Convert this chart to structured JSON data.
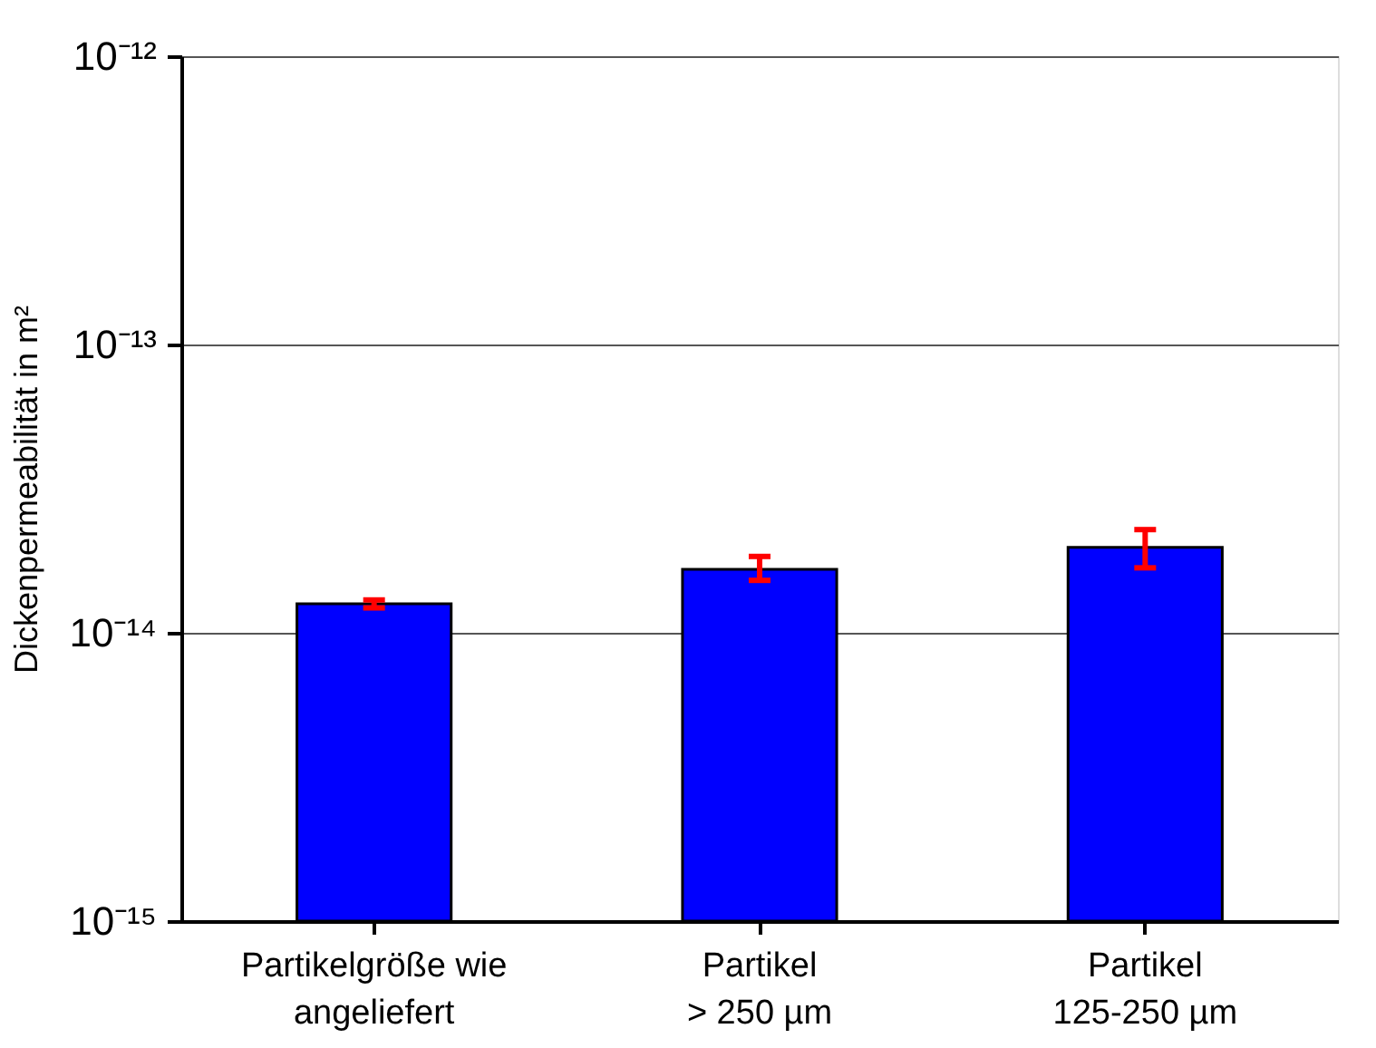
{
  "chart_data": {
    "type": "bar",
    "ylabel": "Dickenpermeabilität in m²",
    "categories": [
      "Partikelgröße wie\nangeliefert",
      "Partikel\n> 250 µm",
      "Partikel\n125-250 µm"
    ],
    "values": [
      1.26e-14,
      1.66e-14,
      1.98e-14
    ],
    "errors": [
      [
        1.22e-14,
        1.3e-14
      ],
      [
        1.52e-14,
        1.84e-14
      ],
      [
        1.68e-14,
        2.28e-14
      ]
    ],
    "color": "#0000ff",
    "log": true,
    "ylim": [
      1e-15,
      1e-12
    ],
    "yticks": [
      {
        "value": 1e-15,
        "label": "10⁻¹⁵"
      },
      {
        "value": 1e-14,
        "label": "10⁻¹⁴"
      },
      {
        "value": 1e-13,
        "label": "10⁻¹³"
      },
      {
        "value": 1e-12,
        "label": "10⁻¹²"
      }
    ],
    "grid": "y"
  }
}
